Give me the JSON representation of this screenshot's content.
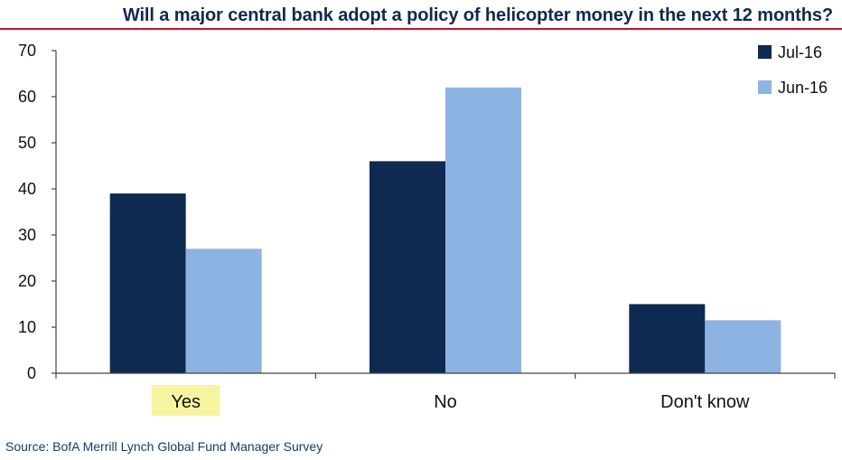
{
  "title": "Will a major central bank adopt a policy of helicopter money in the next 12 months?",
  "source": "Source: BofA Merrill Lynch Global Fund Manager Survey",
  "colors": {
    "jul16": "#0e2a50",
    "jun16": "#8db3e2",
    "highlight": "#f7f4a0",
    "title": "#0e2a50",
    "rule": "#c8102e"
  },
  "chart_data": {
    "type": "bar",
    "title": "Will a major central bank adopt a policy of helicopter money in the next 12 months?",
    "categories": [
      "Yes",
      "No",
      "Don't know"
    ],
    "series": [
      {
        "name": "Jul-16",
        "values": [
          39,
          46,
          15
        ]
      },
      {
        "name": "Jun-16",
        "values": [
          27,
          62,
          11.5
        ]
      }
    ],
    "ylim": [
      0,
      70
    ],
    "yticks": [
      0,
      10,
      20,
      30,
      40,
      50,
      60,
      70
    ],
    "xlabel": "",
    "ylabel": "",
    "grid": false,
    "legend": "top-right",
    "highlighted_category": "Yes"
  }
}
